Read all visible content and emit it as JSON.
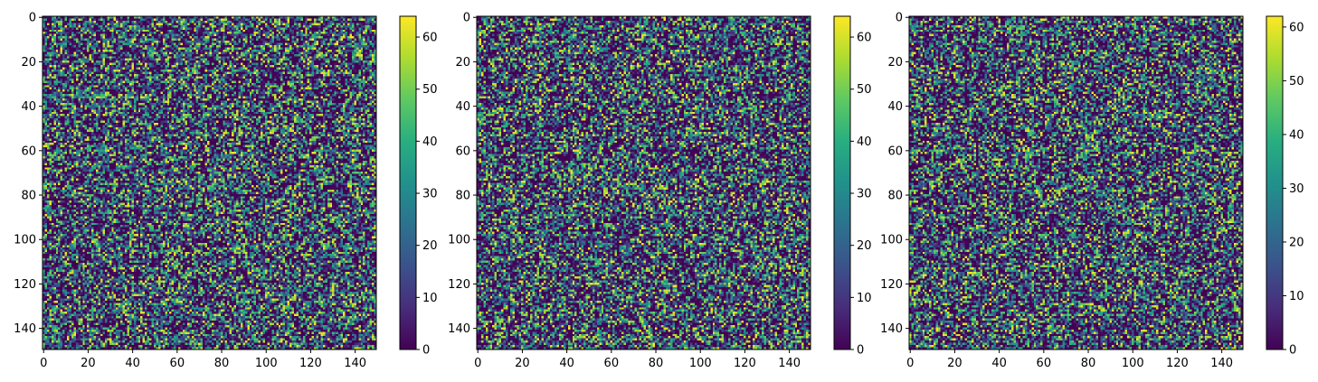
{
  "chart_data": [
    {
      "type": "heatmap",
      "title": "",
      "xlabel": "",
      "ylabel": "",
      "rows": 150,
      "cols": 150,
      "xlim": [
        0,
        150
      ],
      "ylim": [
        150,
        0
      ],
      "x_ticks": [
        0,
        20,
        40,
        60,
        80,
        100,
        120,
        140
      ],
      "y_ticks": [
        0,
        20,
        40,
        60,
        80,
        100,
        120,
        140
      ],
      "vmin": 0,
      "vmax": 64,
      "colorbar_ticks": [
        0,
        10,
        20,
        30,
        40,
        50,
        60
      ],
      "colormap": "viridis",
      "seed": 11,
      "grid": false
    },
    {
      "type": "heatmap",
      "title": "",
      "xlabel": "",
      "ylabel": "",
      "rows": 150,
      "cols": 150,
      "xlim": [
        0,
        150
      ],
      "ylim": [
        150,
        0
      ],
      "x_ticks": [
        0,
        20,
        40,
        60,
        80,
        100,
        120,
        140
      ],
      "y_ticks": [
        0,
        20,
        40,
        60,
        80,
        100,
        120,
        140
      ],
      "vmin": 0,
      "vmax": 64,
      "colorbar_ticks": [
        0,
        10,
        20,
        30,
        40,
        50,
        60
      ],
      "colormap": "viridis",
      "seed": 23,
      "grid": false
    },
    {
      "type": "heatmap",
      "title": "",
      "xlabel": "",
      "ylabel": "",
      "rows": 150,
      "cols": 150,
      "xlim": [
        0,
        150
      ],
      "ylim": [
        150,
        0
      ],
      "x_ticks": [
        0,
        20,
        40,
        60,
        80,
        100,
        120,
        140
      ],
      "y_ticks": [
        0,
        20,
        40,
        60,
        80,
        100,
        120,
        140
      ],
      "vmin": 0,
      "vmax": 62,
      "colorbar_ticks": [
        0,
        10,
        20,
        30,
        40,
        50,
        60
      ],
      "colormap": "viridis",
      "seed": 37,
      "grid": false
    }
  ]
}
